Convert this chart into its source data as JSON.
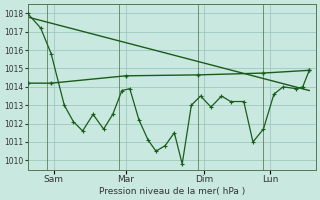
{
  "background_color": "#c8e8e0",
  "grid_color": "#a0c8c0",
  "line_color": "#1a5c1a",
  "ylabel": "Pression niveau de la mer( hPa )",
  "ylim": [
    1009.5,
    1018.5
  ],
  "yticks": [
    1010,
    1011,
    1012,
    1013,
    1014,
    1015,
    1016,
    1017,
    1018
  ],
  "xlim": [
    0,
    22
  ],
  "day_labels": [
    "Sam",
    "Mar",
    "Dim",
    "Lun"
  ],
  "day_positions": [
    2.0,
    7.5,
    13.5,
    18.5
  ],
  "day_vlines": [
    1.5,
    7.0,
    13.0,
    18.0
  ],
  "series1_x": [
    0,
    1.0,
    1.8,
    2.8,
    3.5,
    4.2,
    5.0,
    5.8,
    6.5,
    7.2,
    7.8,
    8.5,
    9.2,
    9.8,
    10.5,
    11.2,
    11.8,
    12.5,
    13.2,
    14.0,
    14.8,
    15.5,
    16.5,
    17.2,
    18.0,
    18.8,
    19.5,
    20.5,
    21.0,
    21.5
  ],
  "series1_y": [
    1018.0,
    1017.2,
    1015.8,
    1013.0,
    1012.1,
    1011.6,
    1012.5,
    1011.7,
    1012.5,
    1013.8,
    1013.9,
    1012.2,
    1011.1,
    1010.5,
    1010.8,
    1011.5,
    1009.8,
    1013.0,
    1013.5,
    1012.9,
    1013.5,
    1013.2,
    1013.2,
    1011.0,
    1011.7,
    1013.6,
    1014.0,
    1013.9,
    1014.0,
    1014.9
  ],
  "series2_x": [
    0,
    1.8,
    7.5,
    13.0,
    18.0,
    21.5
  ],
  "series2_y": [
    1014.2,
    1014.2,
    1014.6,
    1014.65,
    1014.75,
    1014.9
  ],
  "trend_x": [
    0,
    21.5
  ],
  "trend_y": [
    1017.8,
    1013.8
  ]
}
